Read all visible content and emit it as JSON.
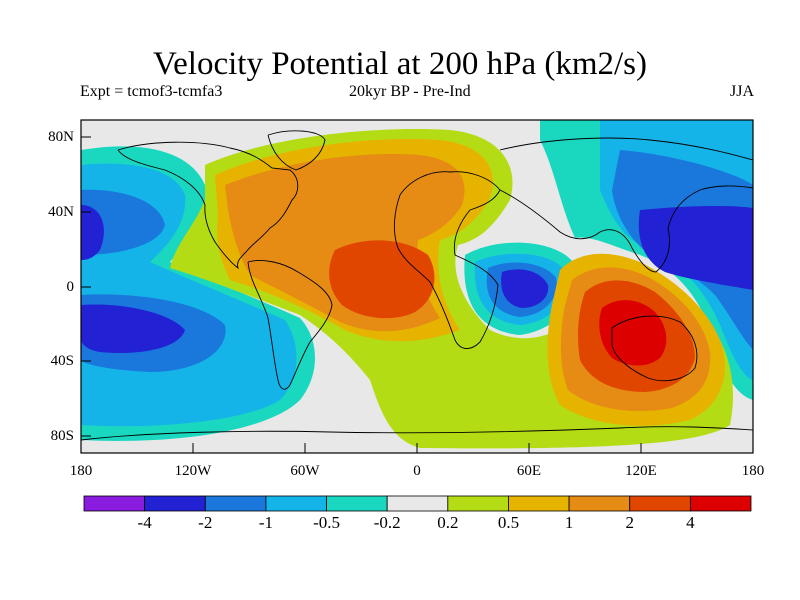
{
  "title": "Velocity Potential at 200 hPa (km2/s)",
  "subtitle_left": "Expt = tcmof3-tcmfa3",
  "subtitle_center": "20kyr BP - Pre-Ind",
  "subtitle_right": "JJA",
  "lat_labels": [
    "80N",
    "40N",
    "0",
    "40S",
    "80S"
  ],
  "lon_labels": [
    "180",
    "120W",
    "60W",
    "0",
    "60E",
    "120E",
    "180"
  ],
  "colorbar": {
    "labels": [
      "-4",
      "-2",
      "-1",
      "-0.5",
      "-0.2",
      "0.2",
      "0.5",
      "1",
      "2",
      "4"
    ],
    "colors": [
      "#8a1ce0",
      "#2222d4",
      "#1a78dc",
      "#14b4e8",
      "#1ad8c0",
      "#e8e8e8",
      "#b4dc14",
      "#e6b400",
      "#e68c14",
      "#e14600",
      "#dc0000"
    ]
  },
  "field_colors": {
    "neutral": "#e8e8e8",
    "neg_02": "#1ad8c0",
    "neg_05": "#14b4e8",
    "neg_1": "#1a78dc",
    "neg_2": "#2222d4",
    "pos_02": "#b4dc14",
    "pos_05": "#e6b400",
    "pos_1": "#e68c14",
    "pos_2": "#e14600",
    "pos_4": "#dc0000"
  }
}
